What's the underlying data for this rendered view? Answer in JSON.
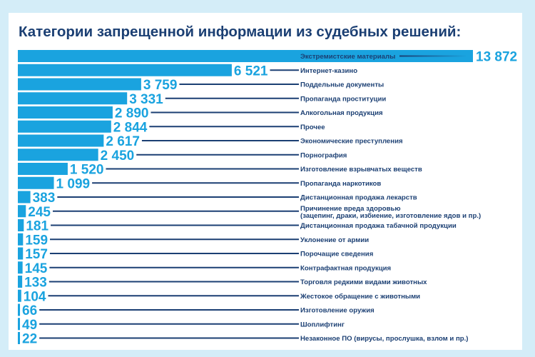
{
  "chart_data": {
    "type": "bar",
    "orientation": "horizontal",
    "title": "Категории запрещенной информации из судебных решений:",
    "xlabel": "",
    "ylabel": "",
    "xlim": [
      0,
      13872
    ],
    "grid": false,
    "categories": [
      "Экстремистские материалы",
      "Интернет-казино",
      "Поддельные документы",
      "Пропаганда проституции",
      "Алкогольная продукция",
      "Прочее",
      "Экономические преступления",
      "Порнография",
      "Изготовление взрывчатых веществ",
      "Пропаганда наркотиков",
      "Дистанционная продажа лекарств",
      "Причинение вреда здоровью\n(зацепинг, драки, избиение, изготовление ядов и пр.)",
      "Дистанционная продажа табачной продукции",
      "Уклонение от армии",
      "Порочащие сведения",
      "Контрафактная продукция",
      "Торговля редкими видами животных",
      "Жестокое обращение с животными",
      "Изготовление оружия",
      "Шоплифтинг",
      "Незаконное ПО (вирусы, прослушка, взлом и пр.)"
    ],
    "values": [
      13872,
      6521,
      3759,
      3331,
      2890,
      2844,
      2617,
      2450,
      1520,
      1099,
      383,
      245,
      181,
      159,
      157,
      145,
      133,
      104,
      66,
      49,
      22
    ],
    "value_labels": [
      "13 872",
      "6 521",
      "3 759",
      "3 331",
      "2 890",
      "2 844",
      "2 617",
      "2 450",
      "1 520",
      "1 099",
      "383",
      "245",
      "181",
      "159",
      "157",
      "145",
      "133",
      "104",
      "66",
      "49",
      "22"
    ]
  },
  "colors": {
    "bar": "#1aa3df",
    "text": "#1b3f73",
    "background": "#d4edf8"
  }
}
